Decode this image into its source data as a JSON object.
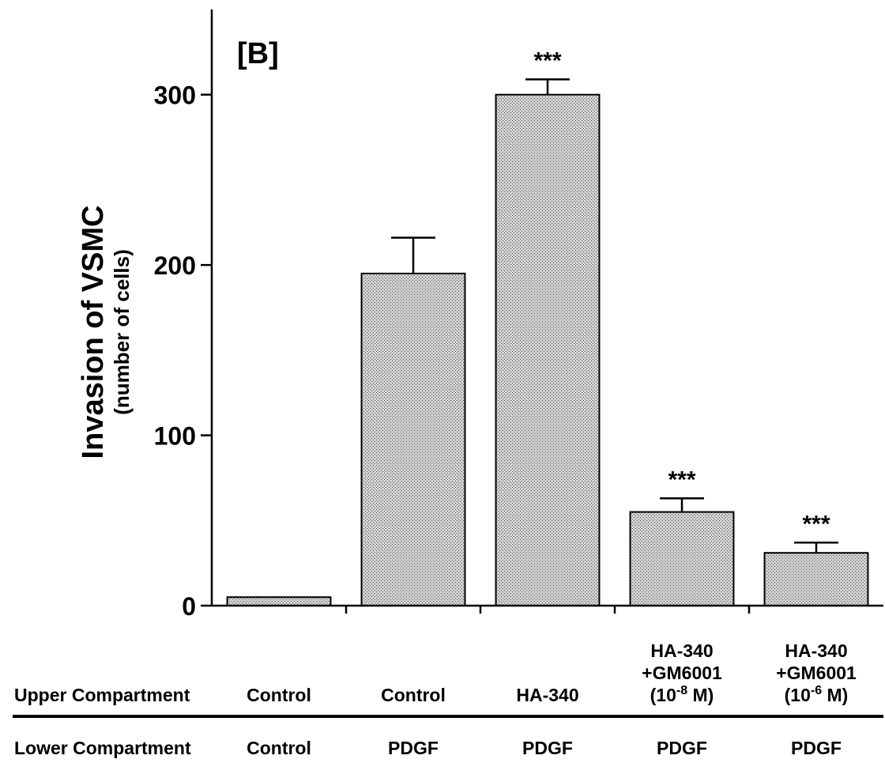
{
  "chart_data": {
    "type": "bar",
    "panel_label": "[B]",
    "ylabel": "Invasion of VSMC",
    "ylabel_sub": "(number of cells)",
    "ylim": [
      0,
      350
    ],
    "yticks": [
      0,
      100,
      200,
      300
    ],
    "ytick_labels": [
      "0",
      "100",
      "200",
      "300"
    ],
    "row_labels": {
      "upper": "Upper Compartment",
      "lower": "Lower Compartment"
    },
    "categories": [
      {
        "upper": [
          "Control"
        ],
        "lower": "Control"
      },
      {
        "upper": [
          "Control"
        ],
        "lower": "PDGF"
      },
      {
        "upper": [
          "HA-340"
        ],
        "lower": "PDGF"
      },
      {
        "upper": [
          "HA-340",
          "+GM6001"
        ],
        "conc_base": "(10",
        "conc_exp": "-8",
        "conc_unit": " M)",
        "lower": "PDGF"
      },
      {
        "upper": [
          "HA-340",
          "+GM6001"
        ],
        "conc_base": "(10",
        "conc_exp": "-6",
        "conc_unit": " M)",
        "lower": "PDGF"
      }
    ],
    "values": [
      5,
      195,
      300,
      55,
      31
    ],
    "errors": [
      0,
      21,
      9,
      8,
      6
    ],
    "significance": [
      "",
      "",
      "***",
      "***",
      "***"
    ],
    "bar_color": "#b4b4b4"
  }
}
